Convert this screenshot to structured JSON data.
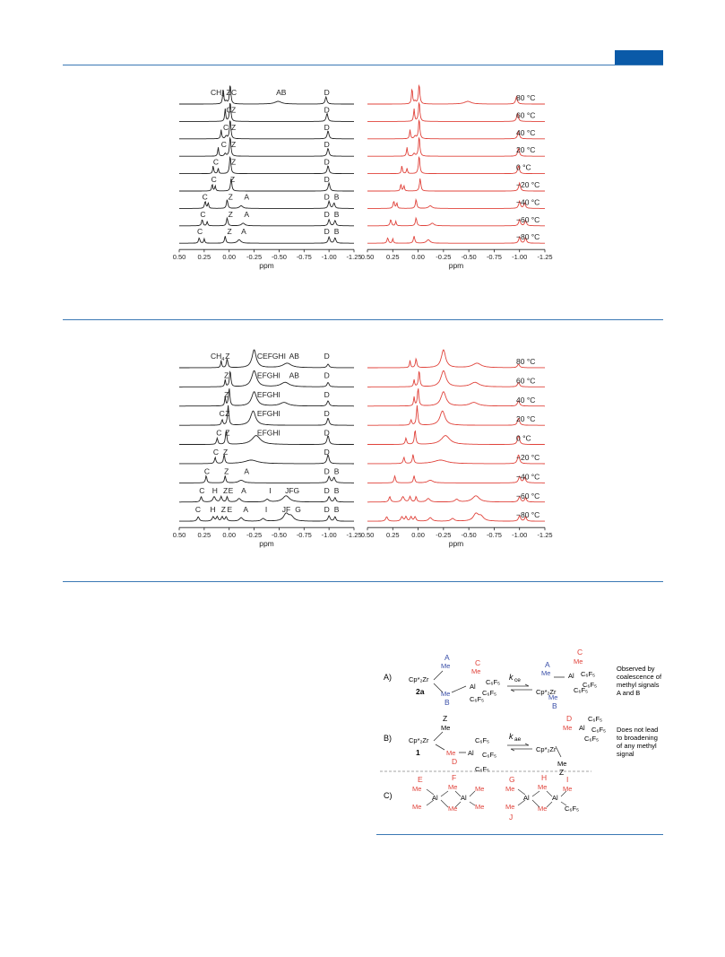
{
  "colors": {
    "accent_rule": "#3a78b4",
    "accent_tab": "#0a5aa8",
    "experimental": "#222222",
    "simulated": "#e0433b",
    "label_red": "#e0433b",
    "label_blue": "#3a4fa8"
  },
  "chart_data": [
    {
      "type": "line",
      "panel": "top",
      "xlabel": "ppm",
      "xlim": [
        0.5,
        -1.25
      ],
      "x_ticks": [
        "0.50",
        "0.25",
        "0.00",
        "-0.25",
        "-0.50",
        "-0.75",
        "-1.00",
        "-1.25"
      ],
      "temperatures": [
        "80 °C",
        "60 °C",
        "40 °C",
        "20 °C",
        "0 °C",
        "−20 °C",
        "−40 °C",
        "−60 °C",
        "−80 °C"
      ],
      "peak_labels": [
        [
          "CH4",
          "Z",
          "C",
          "AB",
          "D"
        ],
        [
          "C",
          "Z",
          "D"
        ],
        [
          "C",
          "Z",
          "D"
        ],
        [
          "C",
          "Z",
          "D"
        ],
        [
          "C",
          "Z",
          "D"
        ],
        [
          "C",
          "Z",
          "D"
        ],
        [
          "C",
          "Z",
          "A",
          "D",
          "B"
        ],
        [
          "C",
          "Z",
          "A",
          "D",
          "B"
        ],
        [
          "C",
          "Z",
          "A",
          "D",
          "B"
        ]
      ]
    },
    {
      "type": "line",
      "panel": "middle",
      "xlabel": "ppm",
      "xlim": [
        0.5,
        -1.25
      ],
      "x_ticks": [
        "0.50",
        "0.25",
        "0.00",
        "-0.25",
        "-0.50",
        "-0.75",
        "-1.00",
        "-1.25"
      ],
      "temperatures": [
        "80 °C",
        "60 °C",
        "40 °C",
        "20 °C",
        "0 °C",
        "−20 °C",
        "−40 °C",
        "−60 °C",
        "−80 °C"
      ],
      "peak_labels": [
        [
          "CH4",
          "Z",
          "CEFGHI",
          "AB",
          "D"
        ],
        [
          "Z",
          "EFGHI",
          "AB",
          "D"
        ],
        [
          "Z",
          "EFGHI",
          "D"
        ],
        [
          "C",
          "Z",
          "EFGHI",
          "D"
        ],
        [
          "C",
          "Z",
          "EFGHI",
          "D"
        ],
        [
          "C",
          "Z",
          "D"
        ],
        [
          "C",
          "Z",
          "A",
          "D",
          "B"
        ],
        [
          "C",
          "H",
          "Z",
          "E",
          "A",
          "I",
          "JFG",
          "D",
          "B"
        ],
        [
          "C",
          "H",
          "Z",
          "E",
          "A",
          "I",
          "JF",
          "G",
          "D",
          "B"
        ]
      ]
    }
  ],
  "scheme": {
    "rowA": {
      "tag": "A)",
      "complex": "2a",
      "metal": "Cp*₂Zr",
      "al": "Al",
      "me": "Me",
      "c6f5": "C₆F₅",
      "rate": "k",
      "rate_sub": "ce",
      "labels": [
        "A",
        "B",
        "C"
      ],
      "note": [
        "Observed by",
        "coalescence of",
        "methyl signals",
        "A and B"
      ]
    },
    "rowB": {
      "tag": "B)",
      "complex": "1",
      "metal": "Cp*₂Zr",
      "al": "Al",
      "me": "Me",
      "c6f5": "C₆F₅",
      "rate": "k",
      "rate_sub": "ae",
      "labels": [
        "Z",
        "D"
      ],
      "note": [
        "Does not lead",
        "to broadening",
        "of any methyl",
        "signal"
      ]
    },
    "rowC": {
      "tag": "C)",
      "al": "Al",
      "me": "Me",
      "c6f5": "C₆F₅",
      "labels": [
        "E",
        "F",
        "G",
        "H",
        "I",
        "J"
      ]
    }
  }
}
